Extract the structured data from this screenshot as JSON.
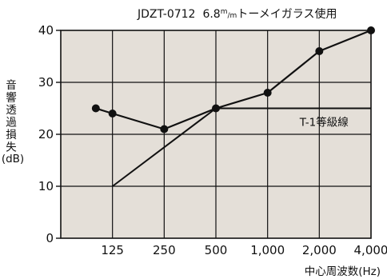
{
  "chart_data": {
    "type": "line",
    "title": "JDZT-0712　6.8㎡トーメイガラス使用",
    "title_parts": {
      "code": "JDZT-0712",
      "thickness": "6.8",
      "unit_num": "m",
      "unit_den": "m",
      "suffix": "トーメイガラス使用"
    },
    "xlabel": "中心周波数(Hz)",
    "ylabel_chars": [
      "音",
      "響",
      "透",
      "過",
      "損",
      "失"
    ],
    "ylabel_unit": "(dB)",
    "categories": [
      "125",
      "250",
      "500",
      "1,000",
      "2,000",
      "4,000"
    ],
    "ylim": [
      0,
      40
    ],
    "yticks": [
      0,
      10,
      20,
      30,
      40
    ],
    "grid": true,
    "series": [
      {
        "values": [
          {
            "x": 100,
            "y": 25
          },
          {
            "x": 125,
            "y": 24
          },
          {
            "x": 250,
            "y": 21
          },
          {
            "x": 500,
            "y": 25
          },
          {
            "x": 1000,
            "y": 28
          },
          {
            "x": 2000,
            "y": 36
          },
          {
            "x": 4000,
            "y": 40
          }
        ],
        "markers": true
      },
      {
        "name": "T-1等級線",
        "values": [
          {
            "x": 125,
            "y": 10
          },
          {
            "x": 500,
            "y": 25
          },
          {
            "x": 4000,
            "y": 25
          }
        ],
        "markers": false
      }
    ],
    "colors": {
      "plot_bg": "#e4dfd8",
      "grid": "#111111",
      "line": "#111111"
    }
  }
}
